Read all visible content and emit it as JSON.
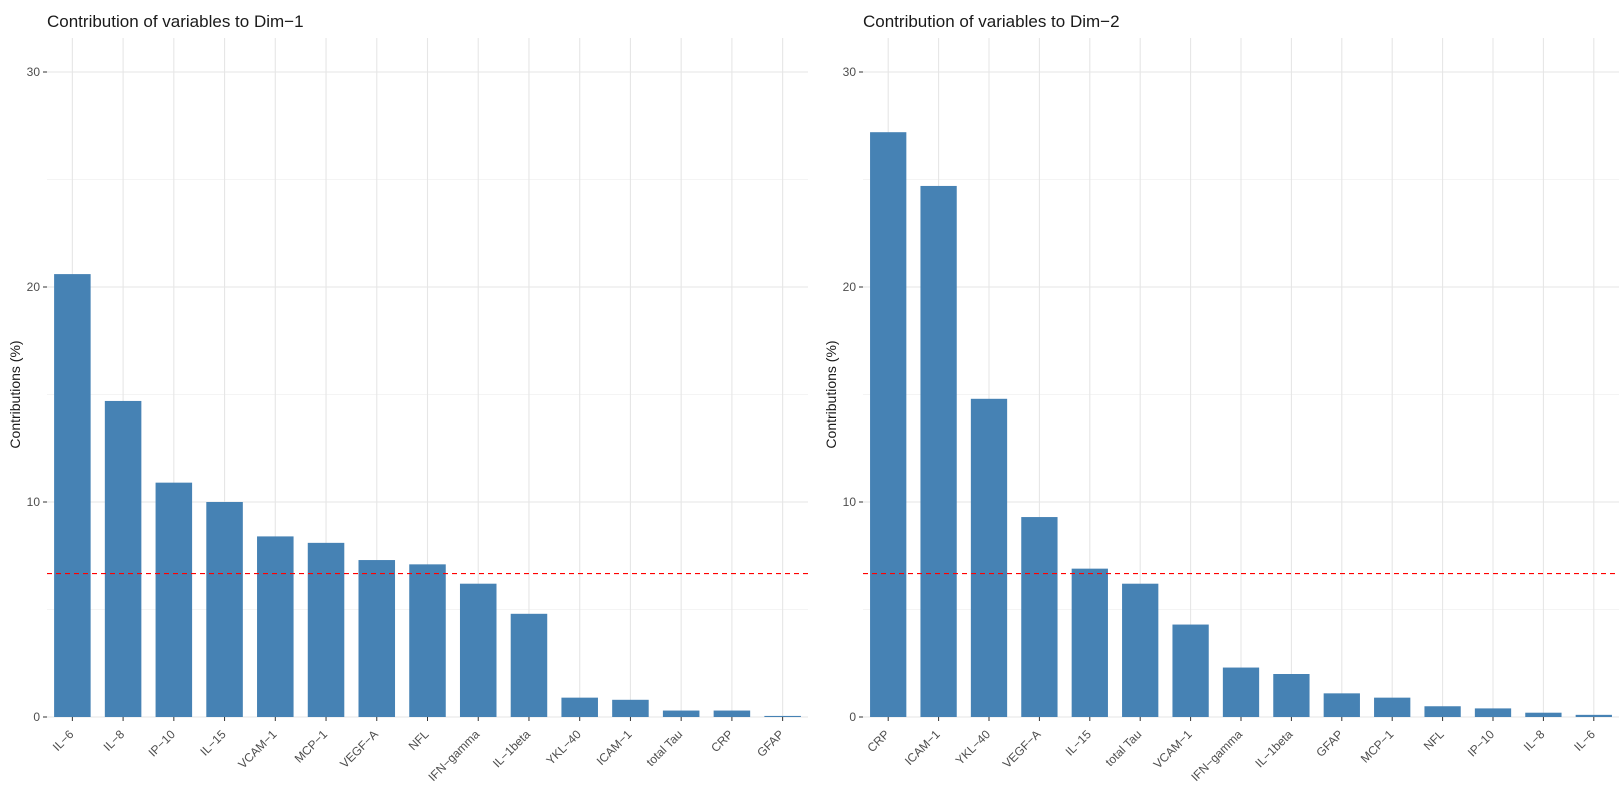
{
  "colors": {
    "bar": "#4682B4",
    "reference_line": "#FF0000",
    "grid": "#EBEBEB"
  },
  "chart_data": [
    {
      "type": "bar",
      "title": "Contribution of variables to Dim−1",
      "xlabel": "",
      "ylabel": "Contributions (%)",
      "ylim": [
        0,
        30
      ],
      "yticks": [
        "0",
        "10",
        "20",
        "30"
      ],
      "grid": true,
      "reference_line": 6.67,
      "categories": [
        "IL−6",
        "IL−8",
        "IP−10",
        "IL−15",
        "VCAM−1",
        "MCP−1",
        "VEGF−A",
        "NFL",
        "IFN−gamma",
        "IL−1beta",
        "YKL−40",
        "ICAM−1",
        "total Tau",
        "CRP",
        "GFAP"
      ],
      "values": [
        20.6,
        14.7,
        10.9,
        10.0,
        8.4,
        8.1,
        7.3,
        7.1,
        6.2,
        4.8,
        0.9,
        0.8,
        0.3,
        0.3,
        0.05
      ]
    },
    {
      "type": "bar",
      "title": "Contribution of variables to Dim−2",
      "xlabel": "",
      "ylabel": "Contributions (%)",
      "ylim": [
        0,
        30
      ],
      "yticks": [
        "0",
        "10",
        "20",
        "30"
      ],
      "grid": true,
      "reference_line": 6.67,
      "categories": [
        "CRP",
        "ICAM−1",
        "YKL−40",
        "VEGF−A",
        "IL−15",
        "total Tau",
        "VCAM−1",
        "IFN−gamma",
        "IL−1beta",
        "GFAP",
        "MCP−1",
        "NFL",
        "IP−10",
        "IL−8",
        "IL−6"
      ],
      "values": [
        27.2,
        24.7,
        14.8,
        9.3,
        6.9,
        6.2,
        4.3,
        2.3,
        2.0,
        1.1,
        0.9,
        0.5,
        0.4,
        0.2,
        0.1
      ]
    }
  ]
}
